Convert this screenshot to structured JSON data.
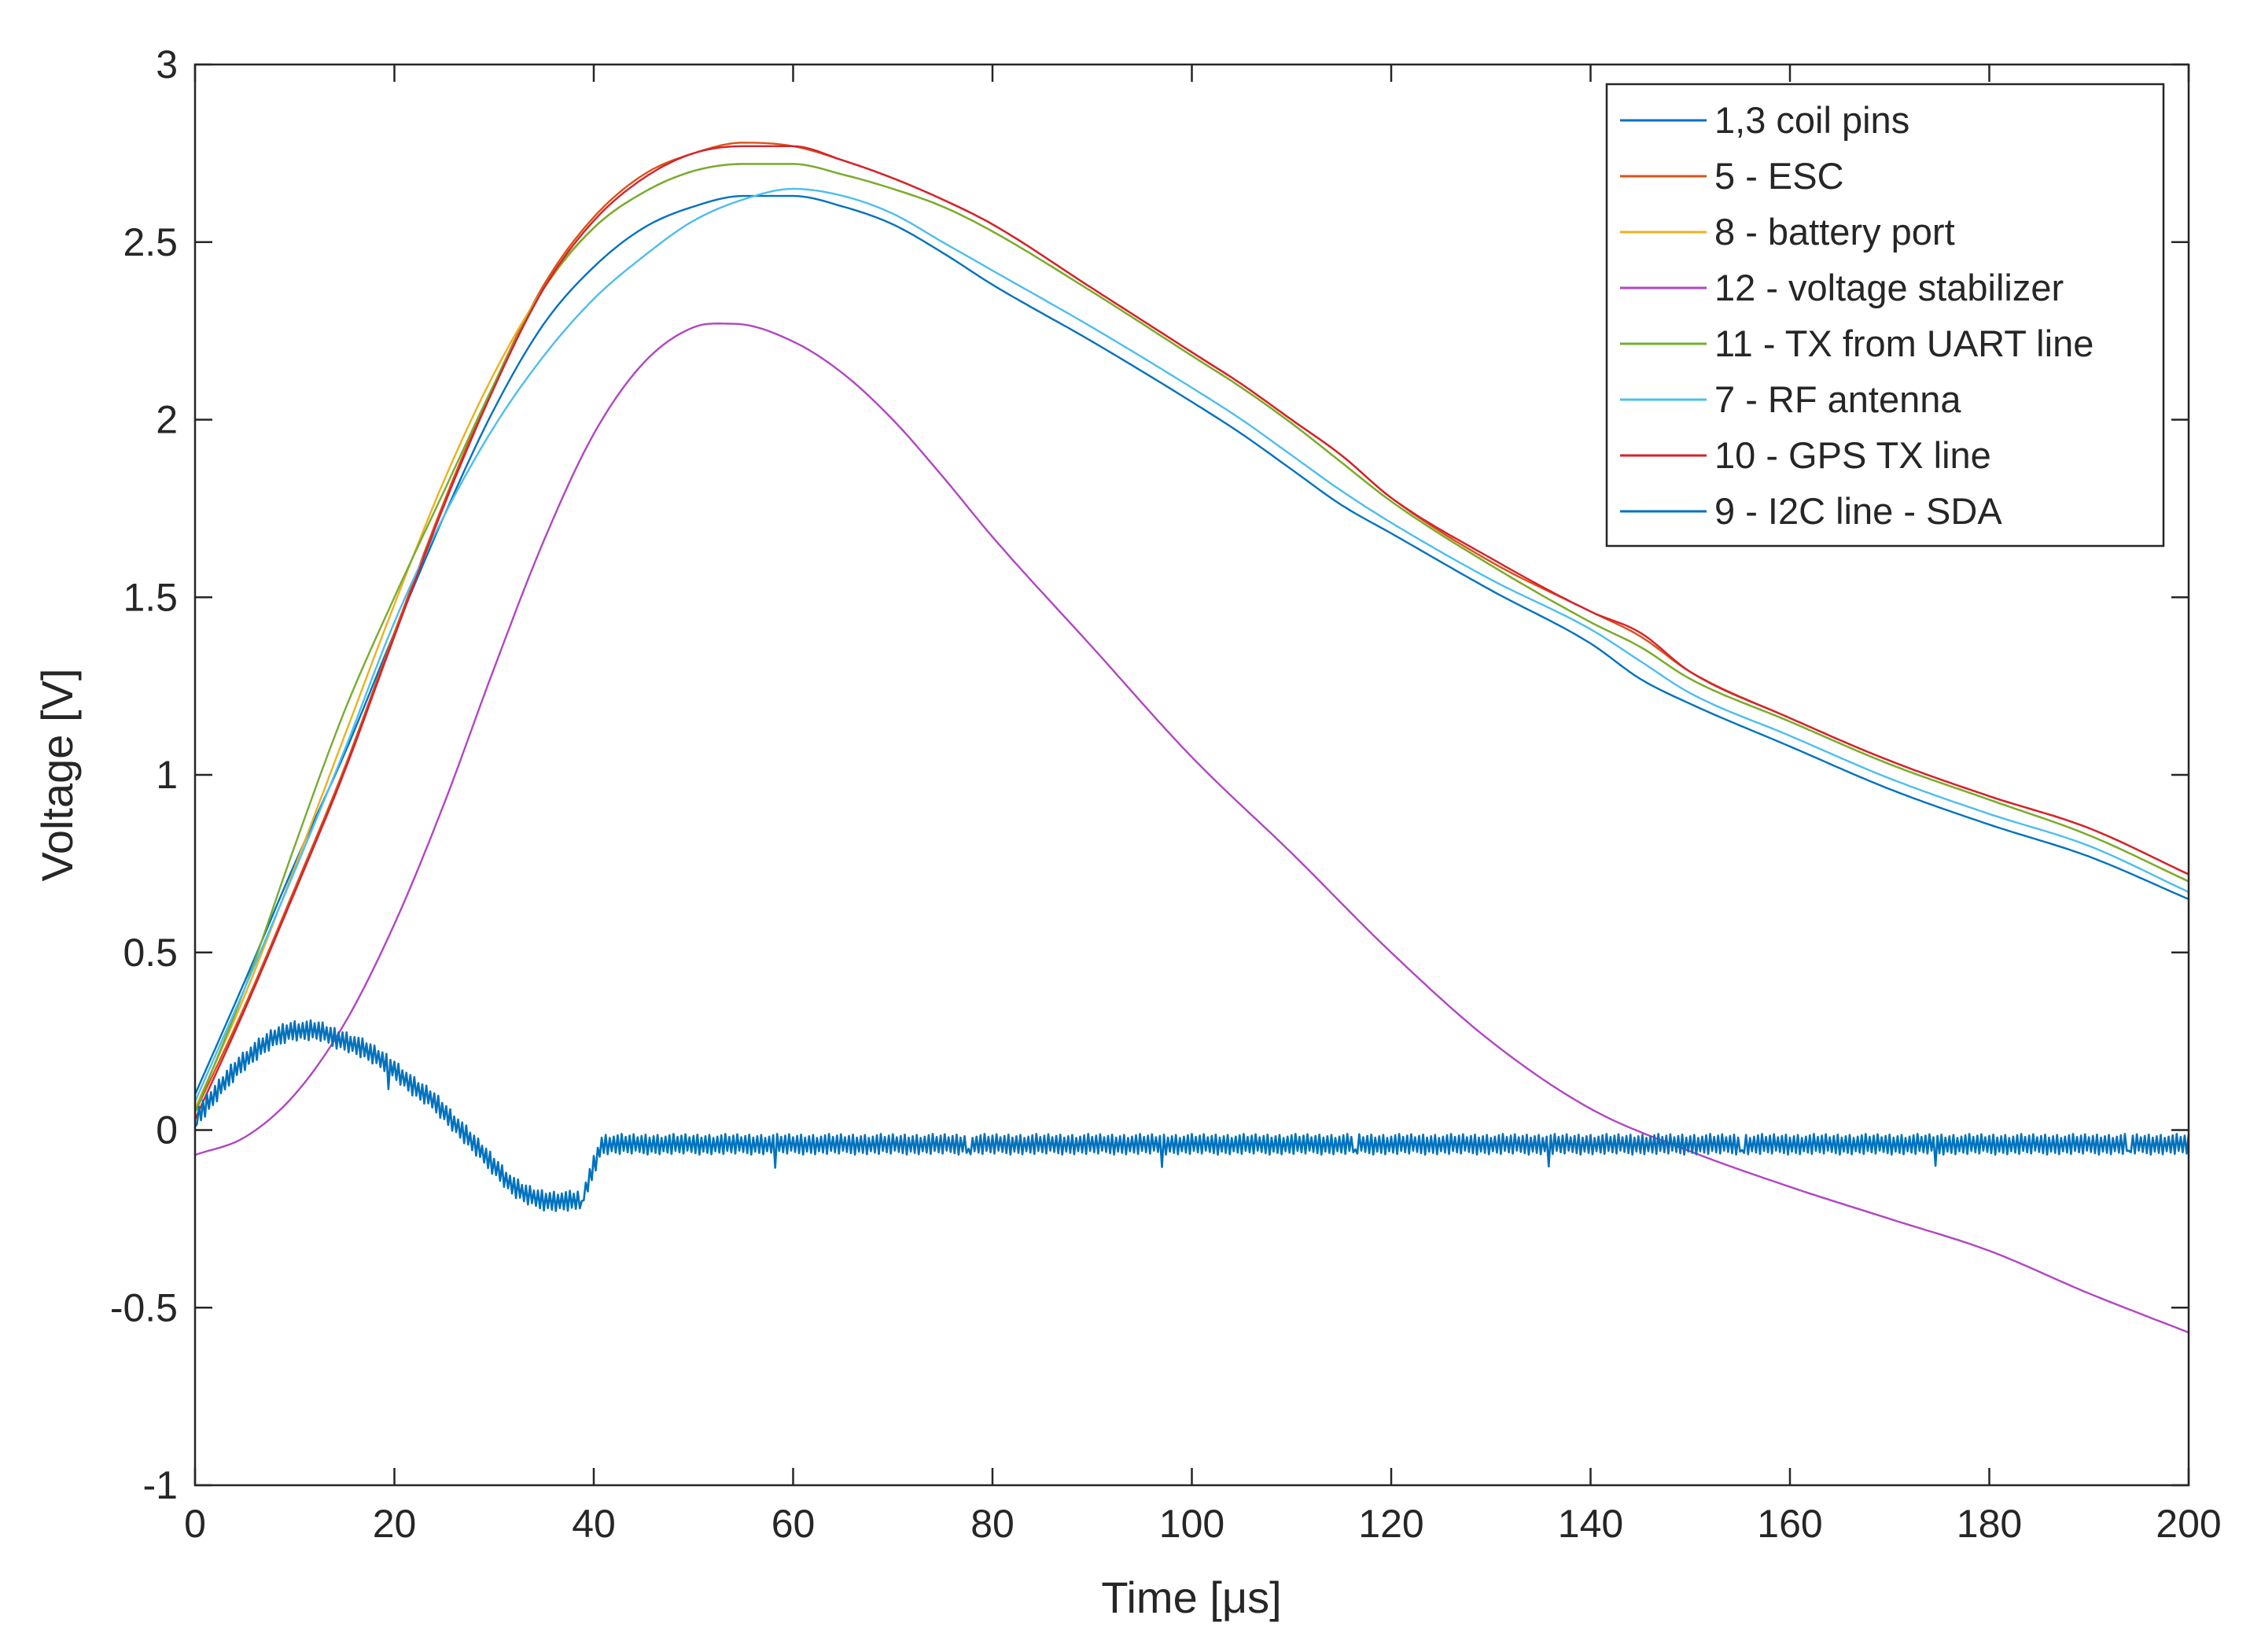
{
  "chart_data": {
    "type": "line",
    "title": "",
    "xlabel": "Time [μs]",
    "ylabel": "Voltage [V]",
    "xlim": [
      0,
      200
    ],
    "ylim": [
      -1,
      3
    ],
    "xticks": [
      0,
      20,
      40,
      60,
      80,
      100,
      120,
      140,
      160,
      180,
      200
    ],
    "yticks": [
      -1,
      -0.5,
      0,
      0.5,
      1,
      1.5,
      2,
      2.5,
      3
    ],
    "xtick_labels": [
      "0",
      "20",
      "40",
      "60",
      "80",
      "100",
      "120",
      "140",
      "160",
      "180",
      "200"
    ],
    "ytick_labels": [
      "-1",
      "-0.5",
      "0",
      "0.5",
      "1",
      "1.5",
      "2",
      "2.5",
      "3"
    ],
    "grid": false,
    "legend_position": "top-right",
    "series": [
      {
        "name": "1,3 coil pins",
        "color": "#0072BD",
        "x": [
          0,
          5,
          10,
          15,
          20,
          25,
          30,
          35,
          40,
          45,
          50,
          55,
          60,
          65,
          70,
          75,
          80,
          90,
          100,
          105,
          110,
          115,
          120,
          130,
          140,
          145,
          150,
          160,
          170,
          180,
          190,
          200
        ],
        "y": [
          0.1,
          0.42,
          0.75,
          1.06,
          1.4,
          1.73,
          2.03,
          2.27,
          2.43,
          2.54,
          2.6,
          2.63,
          2.63,
          2.6,
          2.55,
          2.47,
          2.38,
          2.22,
          2.05,
          1.96,
          1.86,
          1.76,
          1.68,
          1.52,
          1.37,
          1.27,
          1.2,
          1.08,
          0.96,
          0.86,
          0.77,
          0.65
        ]
      },
      {
        "name": "5 - ESC",
        "color": "#D95319",
        "x": [
          0,
          5,
          10,
          15,
          20,
          25,
          30,
          35,
          40,
          45,
          50,
          55,
          60,
          65,
          70,
          75,
          80,
          90,
          100,
          105,
          110,
          115,
          120,
          130,
          140,
          145,
          150,
          160,
          170,
          180,
          190,
          200
        ],
        "y": [
          0.05,
          0.35,
          0.68,
          1.02,
          1.4,
          1.77,
          2.1,
          2.38,
          2.57,
          2.69,
          2.75,
          2.78,
          2.77,
          2.73,
          2.68,
          2.62,
          2.55,
          2.37,
          2.19,
          2.1,
          2.0,
          1.9,
          1.78,
          1.6,
          1.46,
          1.39,
          1.29,
          1.16,
          1.04,
          0.94,
          0.85,
          0.72
        ]
      },
      {
        "name": "8 - battery port",
        "color": "#EDB120",
        "x": [
          0,
          5,
          10,
          15,
          20,
          25,
          30,
          35,
          40,
          45,
          50,
          55,
          60,
          65,
          70,
          75,
          80,
          90,
          100,
          105,
          110,
          115,
          120,
          130,
          140,
          145,
          150,
          160,
          170,
          180,
          190,
          200
        ],
        "y": [
          0.06,
          0.38,
          0.74,
          1.11,
          1.48,
          1.83,
          2.13,
          2.37,
          2.54,
          2.64,
          2.7,
          2.72,
          2.72,
          2.69,
          2.65,
          2.6,
          2.53,
          2.36,
          2.18,
          2.09,
          1.99,
          1.88,
          1.77,
          1.59,
          1.43,
          1.36,
          1.27,
          1.15,
          1.03,
          0.93,
          0.83,
          0.7
        ]
      },
      {
        "name": "12 - voltage stabilizer",
        "color": "#B146C2",
        "x": [
          0,
          5,
          10,
          15,
          20,
          25,
          30,
          35,
          40,
          45,
          50,
          54,
          60,
          65,
          70,
          75,
          80,
          90,
          100,
          110,
          120,
          130,
          140,
          150,
          160,
          170,
          180,
          190,
          200
        ],
        "y": [
          -0.07,
          -0.02,
          0.1,
          0.3,
          0.58,
          0.92,
          1.3,
          1.66,
          1.96,
          2.16,
          2.26,
          2.27,
          2.22,
          2.13,
          2.0,
          1.84,
          1.67,
          1.36,
          1.05,
          0.78,
          0.5,
          0.25,
          0.06,
          -0.06,
          -0.16,
          -0.25,
          -0.34,
          -0.46,
          -0.57
        ]
      },
      {
        "name": "11 - TX from UART line",
        "color": "#77AC30",
        "x": [
          0,
          5,
          10,
          15,
          20,
          25,
          30,
          35,
          40,
          45,
          50,
          55,
          60,
          65,
          70,
          75,
          80,
          90,
          100,
          105,
          110,
          115,
          120,
          130,
          140,
          145,
          150,
          160,
          170,
          180,
          190,
          200
        ],
        "y": [
          0.05,
          0.4,
          0.8,
          1.18,
          1.5,
          1.8,
          2.1,
          2.37,
          2.54,
          2.64,
          2.7,
          2.72,
          2.72,
          2.69,
          2.65,
          2.6,
          2.53,
          2.36,
          2.18,
          2.09,
          1.99,
          1.88,
          1.77,
          1.59,
          1.43,
          1.36,
          1.27,
          1.15,
          1.03,
          0.93,
          0.83,
          0.7
        ]
      },
      {
        "name": "7 - RF antenna",
        "color": "#4DBEEE",
        "x": [
          0,
          5,
          10,
          15,
          20,
          25,
          30,
          35,
          40,
          45,
          50,
          55,
          60,
          65,
          70,
          75,
          80,
          90,
          100,
          105,
          110,
          115,
          120,
          130,
          140,
          145,
          150,
          160,
          170,
          180,
          190,
          200
        ],
        "y": [
          0.08,
          0.4,
          0.73,
          1.07,
          1.43,
          1.73,
          1.98,
          2.18,
          2.34,
          2.46,
          2.56,
          2.62,
          2.65,
          2.63,
          2.58,
          2.5,
          2.42,
          2.26,
          2.09,
          2.0,
          1.9,
          1.8,
          1.71,
          1.55,
          1.41,
          1.32,
          1.23,
          1.11,
          0.99,
          0.89,
          0.8,
          0.67
        ]
      },
      {
        "name": "10 - GPS TX line",
        "color": "#D4232D",
        "x": [
          0,
          5,
          10,
          15,
          20,
          25,
          30,
          35,
          40,
          45,
          50,
          55,
          60,
          65,
          70,
          75,
          80,
          90,
          100,
          105,
          110,
          115,
          120,
          130,
          140,
          145,
          150,
          160,
          170,
          180,
          190,
          200
        ],
        "y": [
          0.03,
          0.34,
          0.67,
          1.01,
          1.39,
          1.76,
          2.09,
          2.37,
          2.56,
          2.68,
          2.75,
          2.77,
          2.77,
          2.73,
          2.68,
          2.62,
          2.55,
          2.37,
          2.19,
          2.1,
          2.0,
          1.9,
          1.78,
          1.61,
          1.46,
          1.4,
          1.29,
          1.16,
          1.04,
          0.94,
          0.85,
          0.72
        ]
      },
      {
        "name": "9 - I2C line - SDA",
        "color": "#0072BD",
        "x": [
          0,
          2,
          4,
          6,
          8,
          10,
          12,
          14,
          16,
          18,
          20,
          22,
          24,
          26,
          28,
          30,
          32,
          34,
          36,
          38,
          39,
          40,
          41,
          200
        ],
        "y": [
          0.03,
          0.1,
          0.17,
          0.22,
          0.26,
          0.28,
          0.28,
          0.26,
          0.24,
          0.21,
          0.17,
          0.12,
          0.08,
          0.02,
          -0.04,
          -0.1,
          -0.16,
          -0.19,
          -0.2,
          -0.2,
          -0.18,
          -0.1,
          -0.04,
          -0.04
        ],
        "noise_amplitude": 0.03
      }
    ]
  }
}
